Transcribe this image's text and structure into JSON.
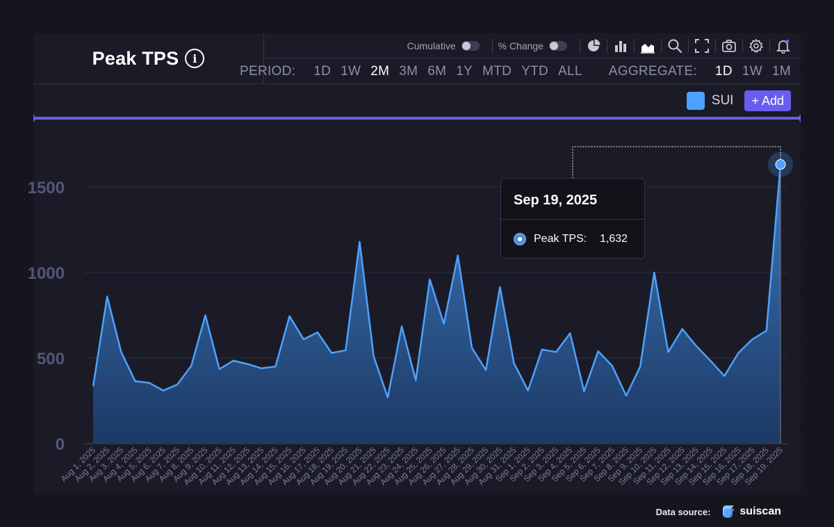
{
  "header": {
    "title": "Peak TPS"
  },
  "toolbar": {
    "cumulative_label": "Cumulative",
    "pct_change_label": "% Change"
  },
  "period": {
    "label": "PERIOD:",
    "options": [
      "1D",
      "1W",
      "2M",
      "3M",
      "6M",
      "1Y",
      "MTD",
      "YTD",
      "ALL"
    ],
    "active": "2M"
  },
  "aggregate": {
    "label": "AGGREGATE:",
    "options": [
      "1D",
      "1W",
      "1M"
    ],
    "active": "1D"
  },
  "series_bar": {
    "series_name": "SUI",
    "add_label": "+ Add"
  },
  "tooltip": {
    "date": "Sep 19, 2025",
    "label": "Peak TPS:",
    "value": "1,632"
  },
  "footer": {
    "source_label": "Data source:",
    "source_name": "suiscan"
  },
  "colors": {
    "series": "#4da2ff",
    "accent": "#6a5cf0"
  },
  "chart_data": {
    "type": "area",
    "title": "Peak TPS",
    "xlabel": "",
    "ylabel": "",
    "ylim": [
      0,
      1750
    ],
    "yticks": [
      0,
      500,
      1000,
      1500
    ],
    "grid": true,
    "legend": "top-right",
    "categories": [
      "Aug 1, 2025",
      "Aug 2, 2025",
      "Aug 3, 2025",
      "Aug 4, 2025",
      "Aug 5, 2025",
      "Aug 6, 2025",
      "Aug 7, 2025",
      "Aug 8, 2025",
      "Aug 9, 2025",
      "Aug 10, 2025",
      "Aug 11, 2025",
      "Aug 12, 2025",
      "Aug 13, 2025",
      "Aug 14, 2025",
      "Aug 15, 2025",
      "Aug 16, 2025",
      "Aug 17, 2025",
      "Aug 18, 2025",
      "Aug 19, 2025",
      "Aug 20, 2025",
      "Aug 21, 2025",
      "Aug 22, 2025",
      "Aug 23, 2025",
      "Aug 24, 2025",
      "Aug 25, 2025",
      "Aug 26, 2025",
      "Aug 27, 2025",
      "Aug 28, 2025",
      "Aug 29, 2025",
      "Aug 30, 2025",
      "Aug 31, 2025",
      "Sep 1, 2025",
      "Sep 2, 2025",
      "Sep 3, 2025",
      "Sep 4, 2025",
      "Sep 5, 2025",
      "Sep 6, 2025",
      "Sep 7, 2025",
      "Sep 8, 2025",
      "Sep 9, 2025",
      "Sep 10, 2025",
      "Sep 11, 2025",
      "Sep 12, 2025",
      "Sep 13, 2025",
      "Sep 14, 2025",
      "Sep 15, 2025",
      "Sep 16, 2025",
      "Sep 17, 2025",
      "Sep 18, 2025",
      "Sep 19, 2025"
    ],
    "series": [
      {
        "name": "SUI",
        "values": [
          335,
          860,
          535,
          365,
          355,
          310,
          345,
          455,
          750,
          435,
          485,
          465,
          440,
          450,
          745,
          610,
          650,
          530,
          545,
          1180,
          510,
          270,
          685,
          370,
          960,
          700,
          1100,
          560,
          430,
          915,
          470,
          310,
          550,
          535,
          645,
          305,
          540,
          455,
          280,
          450,
          1000,
          535,
          670,
          570,
          485,
          395,
          530,
          610,
          660,
          1632
        ]
      }
    ],
    "highlight": {
      "index": 49
    }
  }
}
